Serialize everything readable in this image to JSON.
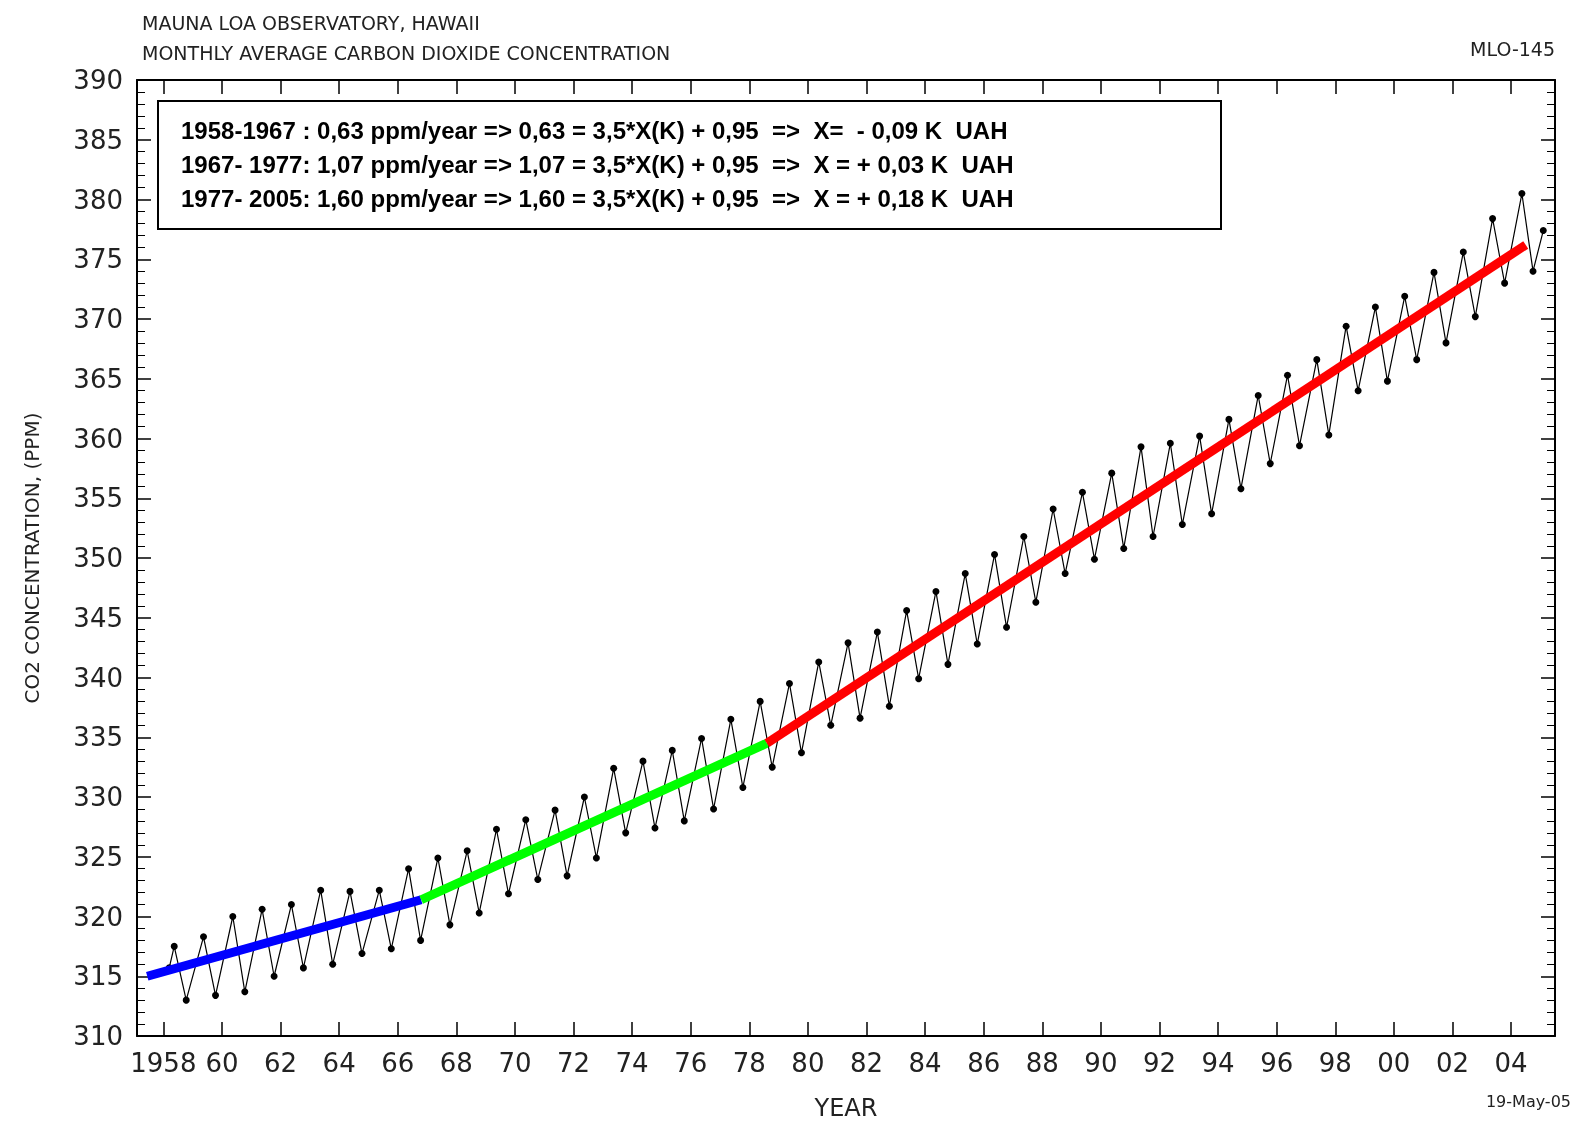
{
  "chart_data": {
    "type": "line",
    "title": "MAUNA LOA OBSERVATORY, HAWAII",
    "subtitle": "MONTHLY AVERAGE CARBON DIOXIDE CONCENTRATION",
    "xlabel": "YEAR",
    "ylabel": "CO2 CONCENTRATION, (PPM)",
    "annotations": [
      "MLO-145",
      "19-May-05",
      "1958-1967 : 0,63 ppm/year => 0,63 = 3,5*X(K) + 0,95  =>  X=  - 0,09 K  UAH",
      "1967- 1977: 1,07 ppm/year => 1,07 = 3,5*X(K) + 0,95  =>  X = + 0,03 K  UAH",
      "1977- 2005: 1,60 ppm/year => 1,60 = 3,5*X(K) + 0,95  =>  X = + 0,18 K  UAH"
    ],
    "xlim": [
      1957.1,
      2005.5
    ],
    "ylim": [
      310,
      390
    ],
    "xticks": [
      {
        "value": 1958,
        "label": "1958"
      },
      {
        "value": 1960,
        "label": "60"
      },
      {
        "value": 1962,
        "label": "62"
      },
      {
        "value": 1964,
        "label": "64"
      },
      {
        "value": 1966,
        "label": "66"
      },
      {
        "value": 1968,
        "label": "68"
      },
      {
        "value": 1970,
        "label": "70"
      },
      {
        "value": 1972,
        "label": "72"
      },
      {
        "value": 1974,
        "label": "74"
      },
      {
        "value": 1976,
        "label": "76"
      },
      {
        "value": 1978,
        "label": "78"
      },
      {
        "value": 1980,
        "label": "80"
      },
      {
        "value": 1982,
        "label": "82"
      },
      {
        "value": 1984,
        "label": "84"
      },
      {
        "value": 1986,
        "label": "86"
      },
      {
        "value": 1988,
        "label": "88"
      },
      {
        "value": 1990,
        "label": "90"
      },
      {
        "value": 1992,
        "label": "92"
      },
      {
        "value": 1994,
        "label": "94"
      },
      {
        "value": 1996,
        "label": "96"
      },
      {
        "value": 1998,
        "label": "98"
      },
      {
        "value": 2000,
        "label": "00"
      },
      {
        "value": 2002,
        "label": "02"
      },
      {
        "value": 2004,
        "label": "04"
      }
    ],
    "yticks": [
      310,
      315,
      320,
      325,
      330,
      335,
      340,
      345,
      350,
      355,
      360,
      365,
      370,
      375,
      380,
      385,
      390
    ],
    "grid": false,
    "marker": "circle",
    "line_style": "solid",
    "series": [
      {
        "color": "#000000",
        "x": [
          1958.2,
          1958.37,
          1958.78,
          1959.37,
          1959.78,
          1960.37,
          1960.78,
          1961.37,
          1961.78,
          1962.37,
          1962.78,
          1963.37,
          1963.78,
          1964.37,
          1964.78,
          1965.37,
          1965.78,
          1966.37,
          1966.78,
          1967.37,
          1967.78,
          1968.37,
          1968.78,
          1969.37,
          1969.78,
          1970.37,
          1970.78,
          1971.37,
          1971.78,
          1972.37,
          1972.78,
          1973.37,
          1973.78,
          1974.37,
          1974.78,
          1975.37,
          1975.78,
          1976.37,
          1976.78,
          1977.37,
          1977.78,
          1978.37,
          1978.78,
          1979.37,
          1979.78,
          1980.37,
          1980.78,
          1981.37,
          1981.78,
          1982.37,
          1982.78,
          1983.37,
          1983.78,
          1984.37,
          1984.78,
          1985.37,
          1985.78,
          1986.37,
          1986.78,
          1987.37,
          1987.78,
          1988.37,
          1988.78,
          1989.37,
          1989.78,
          1990.37,
          1990.78,
          1991.37,
          1991.78,
          1992.37,
          1992.78,
          1993.37,
          1993.78,
          1994.37,
          1994.78,
          1995.37,
          1995.78,
          1996.37,
          1996.78,
          1997.37,
          1997.78,
          1998.37,
          1998.78,
          1999.37,
          1999.78,
          2000.37,
          2000.78,
          2001.37,
          2001.78,
          2002.37,
          2002.78,
          2003.37,
          2003.78,
          2004.37,
          2004.75,
          2005.1
        ],
        "values": [
          315.7,
          317.5,
          313.0,
          318.3,
          313.4,
          320.0,
          313.7,
          320.6,
          315.0,
          321.0,
          315.7,
          322.2,
          316.0,
          322.1,
          316.9,
          322.2,
          317.3,
          324.0,
          318.0,
          324.9,
          319.3,
          325.5,
          320.3,
          327.3,
          321.9,
          328.1,
          323.1,
          328.9,
          323.4,
          330.0,
          324.9,
          332.4,
          327.0,
          333.0,
          327.4,
          333.9,
          328.0,
          334.9,
          329.0,
          336.5,
          330.8,
          338.0,
          332.5,
          339.5,
          333.7,
          341.3,
          336.0,
          342.9,
          336.6,
          343.8,
          337.6,
          345.6,
          339.9,
          347.2,
          341.1,
          348.7,
          342.8,
          350.3,
          344.2,
          351.8,
          346.3,
          354.1,
          348.7,
          355.5,
          349.9,
          357.1,
          350.8,
          359.3,
          351.8,
          359.6,
          352.8,
          360.2,
          353.7,
          361.6,
          355.8,
          363.6,
          357.9,
          365.3,
          359.4,
          366.6,
          360.3,
          369.4,
          364.0,
          371.0,
          364.8,
          371.9,
          366.6,
          373.9,
          368.0,
          375.6,
          370.2,
          378.4,
          373.0,
          380.5,
          374.0,
          377.4
        ]
      },
      {
        "color": "#0000ff",
        "marker": "none",
        "x": [
          1957.45,
          1966.8
        ],
        "values": [
          315.0,
          321.4
        ]
      },
      {
        "color": "#00ff00",
        "marker": "none",
        "x": [
          1966.8,
          1978.6
        ],
        "values": [
          321.4,
          334.5
        ]
      },
      {
        "color": "#ff0000",
        "marker": "none",
        "x": [
          1978.6,
          2004.5
        ],
        "values": [
          334.5,
          376.2
        ]
      }
    ]
  }
}
